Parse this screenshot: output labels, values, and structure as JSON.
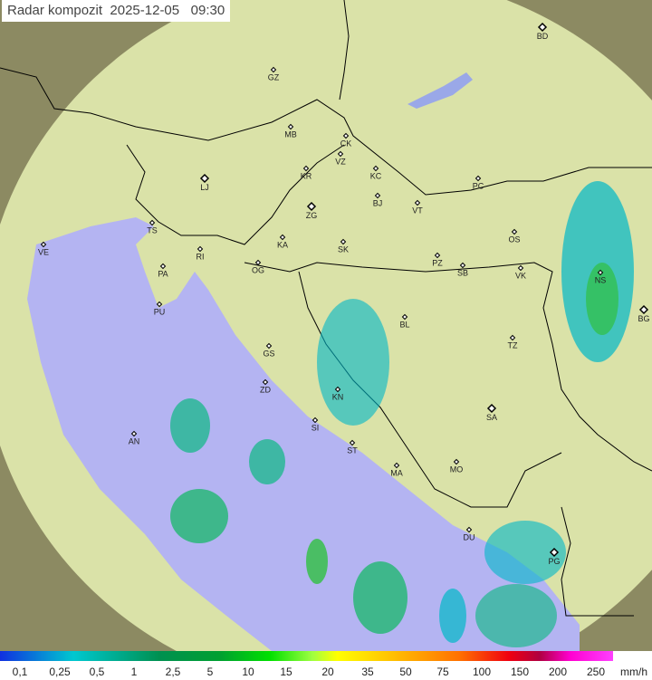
{
  "title": {
    "label": "Radar kompozit",
    "date": "2025-12-05",
    "time": "09:30"
  },
  "colors": {
    "sea": "#b4b4f2",
    "land_overlay": "#dfeaa8",
    "outside_radar": "#8f8f6a",
    "border": "#000000"
  },
  "legend": {
    "unit": "mm/h",
    "ticks": [
      "0,1",
      "0,25",
      "0,5",
      "1",
      "2,5",
      "5",
      "10",
      "15",
      "20",
      "35",
      "50",
      "75",
      "100",
      "150",
      "200",
      "250"
    ]
  },
  "cities": [
    "BD",
    "GZ",
    "MB",
    "CK",
    "VZ",
    "KR",
    "KC",
    "LJ",
    "PC",
    "BJ",
    "ZG",
    "VT",
    "TS",
    "VE",
    "OS",
    "KA",
    "SK",
    "RI",
    "PA",
    "OG",
    "PZ",
    "SB",
    "VK",
    "NS",
    "PU",
    "BG",
    "BL",
    "GS",
    "TZ",
    "ZD",
    "KN",
    "SA",
    "SI",
    "AN",
    "ST",
    "MO",
    "MA",
    "DU",
    "PG"
  ]
}
